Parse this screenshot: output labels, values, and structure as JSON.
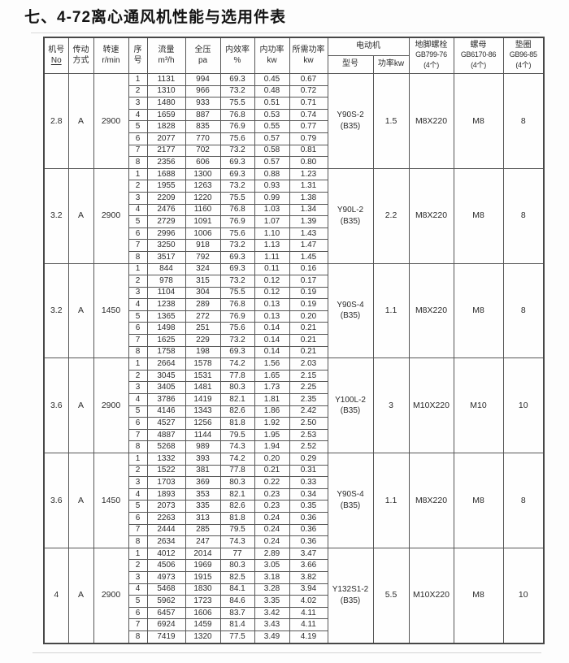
{
  "title": "七、4-72离心通风机性能与选用件表",
  "table": {
    "headers": {
      "machine_no": [
        "机号",
        "No"
      ],
      "drive_mode": [
        "传动",
        "方式"
      ],
      "speed": [
        "转速",
        "r/min"
      ],
      "seq": [
        "序",
        "号"
      ],
      "flow": [
        "流量",
        "m³/h"
      ],
      "pressure": [
        "全压",
        "pa"
      ],
      "efficiency": [
        "内效率",
        "%"
      ],
      "internal_power": [
        "内功率",
        "kw"
      ],
      "required_power": [
        "所需功率",
        "kw"
      ],
      "motor": "电动机",
      "motor_model": "型号",
      "motor_power": "功率kw",
      "anchor_bolt": [
        "地脚螺栓",
        "GB799-76",
        "(4个)"
      ],
      "nut": [
        "螺母",
        "GB6170-86",
        "(4个)"
      ],
      "washer": [
        "垫圈",
        "GB96-85",
        "(4个)"
      ]
    },
    "groups": [
      {
        "machine_no": "2.8",
        "drive_mode": "A",
        "speed": "2900",
        "motor_model": "Y90S-2",
        "motor_frame": "(B35)",
        "motor_power": "1.5",
        "anchor_bolt": "M8X220",
        "nut": "M8",
        "washer": "8",
        "rows": [
          [
            "1",
            "1131",
            "994",
            "69.3",
            "0.45",
            "0.67"
          ],
          [
            "2",
            "1310",
            "966",
            "73.2",
            "0.48",
            "0.72"
          ],
          [
            "3",
            "1480",
            "933",
            "75.5",
            "0.51",
            "0.71"
          ],
          [
            "4",
            "1659",
            "887",
            "76.8",
            "0.53",
            "0.74"
          ],
          [
            "5",
            "1828",
            "835",
            "76.9",
            "0.55",
            "0.77"
          ],
          [
            "6",
            "2077",
            "770",
            "75.6",
            "0.57",
            "0.79"
          ],
          [
            "7",
            "2177",
            "702",
            "73.2",
            "0.58",
            "0.81"
          ],
          [
            "8",
            "2356",
            "606",
            "69.3",
            "0.57",
            "0.80"
          ]
        ]
      },
      {
        "machine_no": "3.2",
        "drive_mode": "A",
        "speed": "2900",
        "motor_model": "Y90L-2",
        "motor_frame": "(B35)",
        "motor_power": "2.2",
        "anchor_bolt": "M8X220",
        "nut": "M8",
        "washer": "8",
        "rows": [
          [
            "1",
            "1688",
            "1300",
            "69.3",
            "0.88",
            "1.23"
          ],
          [
            "2",
            "1955",
            "1263",
            "73.2",
            "0.93",
            "1.31"
          ],
          [
            "3",
            "2209",
            "1220",
            "75.5",
            "0.99",
            "1.38"
          ],
          [
            "4",
            "2476",
            "1160",
            "76.8",
            "1.03",
            "1.34"
          ],
          [
            "5",
            "2729",
            "1091",
            "76.9",
            "1.07",
            "1.39"
          ],
          [
            "6",
            "2996",
            "1006",
            "75.6",
            "1.10",
            "1.43"
          ],
          [
            "7",
            "3250",
            "918",
            "73.2",
            "1.13",
            "1.47"
          ],
          [
            "8",
            "3517",
            "792",
            "69.3",
            "1.11",
            "1.45"
          ]
        ]
      },
      {
        "machine_no": "3.2",
        "drive_mode": "A",
        "speed": "1450",
        "motor_model": "Y90S-4",
        "motor_frame": "(B35)",
        "motor_power": "1.1",
        "anchor_bolt": "M8X220",
        "nut": "M8",
        "washer": "8",
        "rows": [
          [
            "1",
            "844",
            "324",
            "69.3",
            "0.11",
            "0.16"
          ],
          [
            "2",
            "978",
            "315",
            "73.2",
            "0.12",
            "0.17"
          ],
          [
            "3",
            "1104",
            "304",
            "75.5",
            "0.12",
            "0.19"
          ],
          [
            "4",
            "1238",
            "289",
            "76.8",
            "0.13",
            "0.19"
          ],
          [
            "5",
            "1365",
            "272",
            "76.9",
            "0.13",
            "0.20"
          ],
          [
            "6",
            "1498",
            "251",
            "75.6",
            "0.14",
            "0.21"
          ],
          [
            "7",
            "1625",
            "229",
            "73.2",
            "0.14",
            "0.21"
          ],
          [
            "8",
            "1758",
            "198",
            "69.3",
            "0.14",
            "0.21"
          ]
        ]
      },
      {
        "machine_no": "3.6",
        "drive_mode": "A",
        "speed": "2900",
        "motor_model": "Y100L-2",
        "motor_frame": "(B35)",
        "motor_power": "3",
        "anchor_bolt": "M10X220",
        "nut": "M10",
        "washer": "10",
        "rows": [
          [
            "1",
            "2664",
            "1578",
            "74.2",
            "1.56",
            "2.03"
          ],
          [
            "2",
            "3045",
            "1531",
            "77.8",
            "1.65",
            "2.15"
          ],
          [
            "3",
            "3405",
            "1481",
            "80.3",
            "1.73",
            "2.25"
          ],
          [
            "4",
            "3786",
            "1419",
            "82.1",
            "1.81",
            "2.35"
          ],
          [
            "5",
            "4146",
            "1343",
            "82.6",
            "1.86",
            "2.42"
          ],
          [
            "6",
            "4527",
            "1256",
            "81.8",
            "1.92",
            "2.50"
          ],
          [
            "7",
            "4887",
            "1144",
            "79.5",
            "1.95",
            "2.53"
          ],
          [
            "8",
            "5268",
            "989",
            "74.3",
            "1.94",
            "2.52"
          ]
        ]
      },
      {
        "machine_no": "3.6",
        "drive_mode": "A",
        "speed": "1450",
        "motor_model": "Y90S-4",
        "motor_frame": "(B35)",
        "motor_power": "1.1",
        "anchor_bolt": "M8X220",
        "nut": "M8",
        "washer": "8",
        "rows": [
          [
            "1",
            "1332",
            "393",
            "74.2",
            "0.20",
            "0.29"
          ],
          [
            "2",
            "1522",
            "381",
            "77.8",
            "0.21",
            "0.31"
          ],
          [
            "3",
            "1703",
            "369",
            "80.3",
            "0.22",
            "0.33"
          ],
          [
            "4",
            "1893",
            "353",
            "82.1",
            "0.23",
            "0.34"
          ],
          [
            "5",
            "2073",
            "335",
            "82.6",
            "0.23",
            "0.35"
          ],
          [
            "6",
            "2263",
            "313",
            "81.8",
            "0.24",
            "0.36"
          ],
          [
            "7",
            "2444",
            "285",
            "79.5",
            "0.24",
            "0.36"
          ],
          [
            "8",
            "2634",
            "247",
            "74.3",
            "0.24",
            "0.36"
          ]
        ]
      },
      {
        "machine_no": "4",
        "drive_mode": "A",
        "speed": "2900",
        "motor_model": "Y132S1-2",
        "motor_frame": "(B35)",
        "motor_power": "5.5",
        "anchor_bolt": "M10X220",
        "nut": "M8",
        "washer": "10",
        "rows": [
          [
            "1",
            "4012",
            "2014",
            "77",
            "2.89",
            "3.47"
          ],
          [
            "2",
            "4506",
            "1969",
            "80.3",
            "3.05",
            "3.66"
          ],
          [
            "3",
            "4973",
            "1915",
            "82.5",
            "3.18",
            "3.82"
          ],
          [
            "4",
            "5468",
            "1830",
            "84.1",
            "3.28",
            "3.94"
          ],
          [
            "5",
            "5962",
            "1723",
            "84.6",
            "3.35",
            "4.02"
          ],
          [
            "6",
            "6457",
            "1606",
            "83.7",
            "3.42",
            "4.11"
          ],
          [
            "7",
            "6924",
            "1459",
            "81.4",
            "3.43",
            "4.11"
          ],
          [
            "8",
            "7419",
            "1320",
            "77.5",
            "3.49",
            "4.19"
          ]
        ]
      }
    ]
  }
}
